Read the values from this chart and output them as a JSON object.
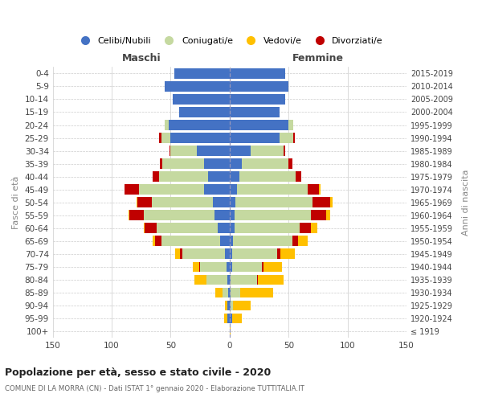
{
  "age_groups": [
    "0-4",
    "5-9",
    "10-14",
    "15-19",
    "20-24",
    "25-29",
    "30-34",
    "35-39",
    "40-44",
    "45-49",
    "50-54",
    "55-59",
    "60-64",
    "65-69",
    "70-74",
    "75-79",
    "80-84",
    "85-89",
    "90-94",
    "95-99",
    "100+"
  ],
  "birth_years": [
    "2015-2019",
    "2010-2014",
    "2005-2009",
    "2000-2004",
    "1995-1999",
    "1990-1994",
    "1985-1989",
    "1980-1984",
    "1975-1979",
    "1970-1974",
    "1965-1969",
    "1960-1964",
    "1955-1959",
    "1950-1954",
    "1945-1949",
    "1940-1944",
    "1935-1939",
    "1930-1934",
    "1925-1929",
    "1920-1924",
    "≤ 1919"
  ],
  "colors": {
    "celibe": "#4472c4",
    "coniugato": "#c5d9a0",
    "vedovo": "#ffc000",
    "divorziato": "#c00000"
  },
  "maschi": {
    "celibe": [
      47,
      55,
      48,
      43,
      52,
      50,
      28,
      22,
      18,
      22,
      14,
      13,
      10,
      8,
      4,
      3,
      2,
      1,
      2,
      2,
      0
    ],
    "coniugato": [
      0,
      0,
      0,
      0,
      3,
      8,
      22,
      35,
      42,
      55,
      52,
      60,
      52,
      50,
      36,
      22,
      18,
      5,
      0,
      0,
      0
    ],
    "vedovo": [
      0,
      0,
      0,
      0,
      0,
      0,
      0,
      0,
      0,
      0,
      1,
      1,
      1,
      2,
      4,
      5,
      10,
      6,
      2,
      3,
      0
    ],
    "divorziato": [
      0,
      0,
      0,
      0,
      0,
      2,
      1,
      2,
      5,
      12,
      12,
      12,
      10,
      5,
      2,
      1,
      0,
      0,
      0,
      0,
      0
    ]
  },
  "femmine": {
    "nubile": [
      47,
      50,
      47,
      42,
      50,
      42,
      18,
      10,
      8,
      6,
      5,
      4,
      4,
      3,
      2,
      2,
      1,
      1,
      1,
      2,
      0
    ],
    "coniugata": [
      0,
      0,
      0,
      0,
      4,
      12,
      28,
      40,
      48,
      60,
      65,
      65,
      55,
      50,
      38,
      25,
      22,
      8,
      2,
      0,
      0
    ],
    "vedova": [
      0,
      0,
      0,
      0,
      0,
      0,
      0,
      0,
      0,
      1,
      2,
      3,
      5,
      8,
      12,
      15,
      22,
      28,
      15,
      8,
      1
    ],
    "divorziata": [
      0,
      0,
      0,
      0,
      0,
      1,
      1,
      3,
      5,
      10,
      15,
      13,
      10,
      5,
      3,
      2,
      1,
      0,
      0,
      0,
      0
    ]
  },
  "xlim": 150,
  "title": "Popolazione per età, sesso e stato civile - 2020",
  "subtitle": "COMUNE DI LA MORRA (CN) - Dati ISTAT 1° gennaio 2020 - Elaborazione TUTTITALIA.IT",
  "ylabel_left": "Fasce di età",
  "ylabel_right": "Anni di nascita",
  "xlabel_maschi": "Maschi",
  "xlabel_femmine": "Femmine",
  "legend_labels": [
    "Celibi/Nubili",
    "Coniugati/e",
    "Vedovi/e",
    "Divorziati/e"
  ],
  "bg_color": "#ffffff",
  "grid_color": "#cccccc"
}
